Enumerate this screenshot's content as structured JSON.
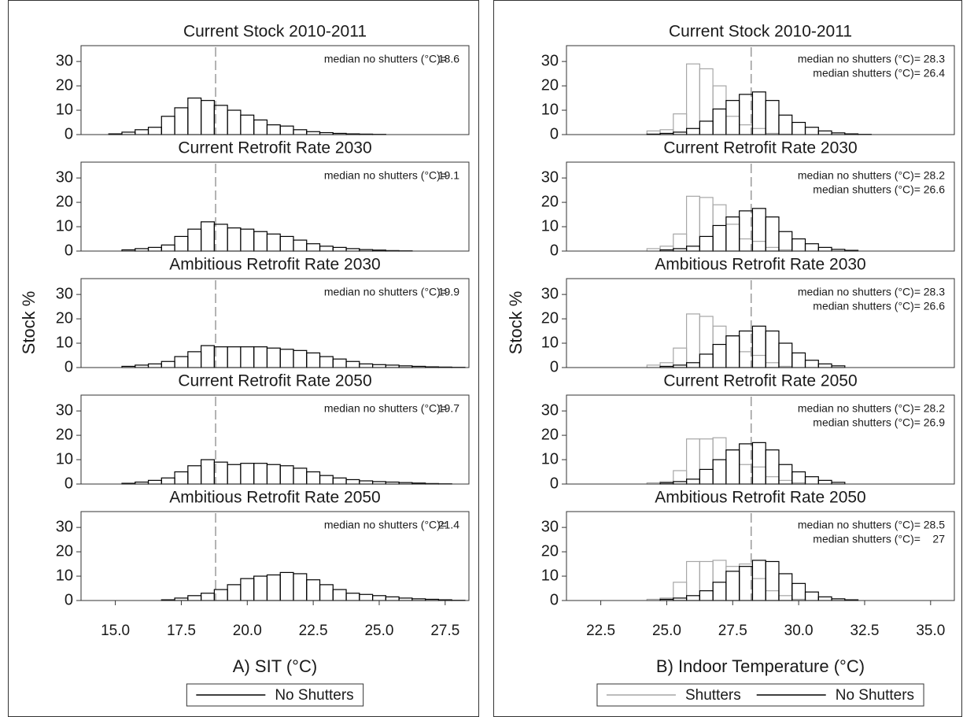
{
  "chart_data": [
    {
      "type": "histogram",
      "xlabel": "A) SIT (°C)",
      "ylabel": "Stock %",
      "xlim": [
        13.7,
        28.4
      ],
      "xticks": [
        {
          "value": 15,
          "label": "15.0"
        },
        {
          "value": 17.5,
          "label": "17.5"
        },
        {
          "value": 20,
          "label": "20.0"
        },
        {
          "value": 22.5,
          "label": "22.5"
        },
        {
          "value": 25,
          "label": "25.0"
        },
        {
          "value": 27.5,
          "label": "27.5"
        }
      ],
      "ylim": [
        0,
        36.5
      ],
      "yticks": [
        0,
        10,
        20,
        30
      ],
      "reference_line": 18.8,
      "bins": [
        14.25,
        14.75,
        15.25,
        15.75,
        16.25,
        16.75,
        17.25,
        17.75,
        18.25,
        18.75,
        19.25,
        19.75,
        20.25,
        20.75,
        21.25,
        21.75,
        22.25,
        22.75,
        23.25,
        23.75,
        24.25,
        24.75,
        25.25,
        25.75,
        26.25,
        26.75,
        27.25,
        27.75,
        28.25
      ],
      "series": [
        {
          "name": "No Shutters",
          "color": "#000000"
        }
      ],
      "panels": [
        {
          "title": "Current Stock 2010-2011",
          "annotations": [
            {
              "label": "median no shutters (°C)=",
              "value": 18.6
            }
          ],
          "values": [
            [
              0,
              0.3,
              1,
              2,
              3,
              7.5,
              11,
              15,
              14,
              12,
              10,
              8,
              6,
              4,
              3.5,
              2,
              1.2,
              0.8,
              0.5,
              0.3,
              0.2,
              0.1,
              0,
              0,
              0,
              0,
              0,
              0
            ]
          ]
        },
        {
          "title": "Current Retrofit Rate 2030",
          "annotations": [
            {
              "label": "median no shutters (°C)=",
              "value": 19.1
            }
          ],
          "values": [
            [
              0,
              0,
              0.5,
              1,
              1.5,
              2.5,
              6,
              9,
              12,
              11,
              9.5,
              9,
              8,
              7,
              6,
              4.5,
              3,
              2,
              1.5,
              1,
              0.6,
              0.4,
              0.2,
              0.1,
              0,
              0,
              0,
              0
            ]
          ]
        },
        {
          "title": "Ambitious Retrofit Rate 2030",
          "annotations": [
            {
              "label": "median no shutters (°C)=",
              "value": 19.9
            }
          ],
          "values": [
            [
              0,
              0,
              0.5,
              1,
              1.5,
              2.5,
              4.5,
              6.5,
              9,
              8.5,
              8.5,
              8.5,
              8.5,
              8,
              7.5,
              7,
              6,
              4.5,
              3.5,
              2.5,
              1.5,
              1.2,
              1,
              0.7,
              0.5,
              0.3,
              0.2,
              0.1
            ]
          ]
        },
        {
          "title": "Current Retrofit Rate 2050",
          "annotations": [
            {
              "label": "median no shutters (°C)=",
              "value": 19.7
            }
          ],
          "values": [
            [
              0,
              0,
              0.3,
              0.8,
              1.5,
              2.5,
              5,
              7.5,
              10,
              9,
              8,
              8.5,
              8.5,
              8,
              7.5,
              6.5,
              5,
              3.5,
              2.5,
              1.8,
              1.3,
              1,
              0.8,
              0.6,
              0.4,
              0.2,
              0.1,
              0
            ]
          ]
        },
        {
          "title": "Ambitious Retrofit Rate 2050",
          "annotations": [
            {
              "label": "median no shutters (°C)=",
              "value": 21.4
            }
          ],
          "values": [
            [
              0,
              0,
              0,
              0,
              0,
              0.3,
              1,
              2,
              3,
              4.5,
              6.5,
              9,
              10,
              10.5,
              11.5,
              11,
              8.5,
              6.5,
              4.5,
              3,
              2.5,
              2,
              1.5,
              1,
              0.7,
              0.5,
              0.3,
              0.1
            ]
          ]
        }
      ]
    },
    {
      "type": "histogram",
      "xlabel": "B) Indoor Temperature (°C)",
      "ylabel": "Stock %",
      "xlim": [
        21.2,
        35.9
      ],
      "xticks": [
        {
          "value": 22.5,
          "label": "22.5"
        },
        {
          "value": 25,
          "label": "25.0"
        },
        {
          "value": 27.5,
          "label": "27.5"
        },
        {
          "value": 30,
          "label": "30.0"
        },
        {
          "value": 32.5,
          "label": "32.5"
        },
        {
          "value": 35,
          "label": "35.0"
        }
      ],
      "ylim": [
        0,
        36.5
      ],
      "yticks": [
        0,
        10,
        20,
        30
      ],
      "reference_line": 28.2,
      "bins": [
        21.25,
        21.75,
        22.25,
        22.75,
        23.25,
        23.75,
        24.25,
        24.75,
        25.25,
        25.75,
        26.25,
        26.75,
        27.25,
        27.75,
        28.25,
        28.75,
        29.25,
        29.75,
        30.25,
        30.75,
        31.25,
        31.75,
        32.25,
        32.75,
        33.25,
        33.75,
        34.25,
        34.75,
        35.25,
        35.75
      ],
      "series": [
        {
          "name": "Shutters",
          "color": "#a6a6a6"
        },
        {
          "name": "No Shutters",
          "color": "#000000"
        }
      ],
      "panels": [
        {
          "title": "Current Stock 2010-2011",
          "annotations": [
            {
              "label": "median no shutters (°C)=",
              "value": 28.3
            },
            {
              "label": "median shutters (°C)=",
              "value": 26.4
            }
          ],
          "values": [
            [
              0,
              0,
              0,
              0,
              0,
              0,
              1.5,
              2,
              8.5,
              29,
              27,
              20,
              7.5,
              4,
              2.5,
              0.5,
              0.2,
              0,
              0,
              0,
              0,
              0,
              0,
              0,
              0,
              0,
              0,
              0,
              0
            ],
            [
              0,
              0,
              0,
              0,
              0,
              0,
              0.2,
              0.5,
              1,
              2.5,
              5.5,
              10.5,
              14,
              16.5,
              17.5,
              14,
              8,
              5,
              3,
              1.5,
              0.7,
              0.3,
              0.1,
              0,
              0,
              0,
              0,
              0,
              0
            ]
          ]
        },
        {
          "title": "Current Retrofit Rate 2030",
          "annotations": [
            {
              "label": "median no shutters (°C)=",
              "value": 28.2
            },
            {
              "label": "median shutters (°C)=",
              "value": 26.6
            }
          ],
          "values": [
            [
              0,
              0,
              0,
              0,
              0,
              0,
              1,
              2,
              7,
              22.5,
              22,
              19,
              11,
              5,
              4,
              1.5,
              0.5,
              0,
              0,
              0,
              0,
              0,
              0,
              0,
              0,
              0,
              0,
              0,
              0
            ],
            [
              0,
              0,
              0,
              0,
              0,
              0,
              0,
              0.5,
              1,
              2,
              6,
              10.5,
              14,
              16.5,
              17.5,
              14,
              8,
              5,
              3,
              1.5,
              0.7,
              0.3,
              0,
              0,
              0,
              0,
              0,
              0,
              0
            ]
          ]
        },
        {
          "title": "Ambitious Retrofit Rate 2030",
          "annotations": [
            {
              "label": "median no shutters (°C)=",
              "value": 28.3
            },
            {
              "label": "median shutters (°C)=",
              "value": 26.6
            }
          ],
          "values": [
            [
              0,
              0,
              0,
              0,
              0,
              0,
              1,
              2,
              8,
              22,
              21,
              17,
              13,
              6.5,
              5,
              2,
              0.5,
              0,
              0,
              0,
              0,
              0,
              0,
              0,
              0,
              0,
              0,
              0,
              0
            ],
            [
              0,
              0,
              0,
              0,
              0,
              0,
              0,
              0.5,
              1,
              2,
              5.5,
              9.5,
              13,
              15,
              17,
              15,
              10,
              6,
              3,
              1.5,
              0.7,
              0,
              0,
              0,
              0,
              0,
              0,
              0,
              0
            ]
          ]
        },
        {
          "title": "Current Retrofit Rate 2050",
          "annotations": [
            {
              "label": "median no shutters (°C)=",
              "value": 28.2
            },
            {
              "label": "median shutters (°C)=",
              "value": 26.9
            }
          ],
          "values": [
            [
              0,
              0,
              0,
              0,
              0,
              0,
              0.5,
              1,
              5.5,
              18.5,
              18.5,
              19,
              14,
              8,
              7,
              3,
              1.5,
              0.5,
              0,
              0,
              0,
              0,
              0,
              0,
              0,
              0,
              0,
              0,
              0
            ],
            [
              0,
              0,
              0,
              0,
              0,
              0,
              0,
              0.5,
              1,
              2,
              6,
              10,
              14,
              16.5,
              17,
              14,
              8,
              5,
              3,
              1.5,
              0.7,
              0,
              0,
              0,
              0,
              0,
              0,
              0,
              0
            ]
          ]
        },
        {
          "title": "Ambitious Retrofit Rate 2050",
          "annotations": [
            {
              "label": "median no shutters (°C)=",
              "value": 28.5
            },
            {
              "label": "median shutters (°C)=",
              "value": 27
            }
          ],
          "values": [
            [
              0,
              0,
              0,
              0,
              0,
              0,
              0.5,
              1,
              7.5,
              16,
              16,
              16.5,
              14,
              15,
              9,
              4,
              2,
              0.5,
              0,
              0,
              0,
              0,
              0,
              0,
              0,
              0,
              0,
              0,
              0
            ],
            [
              0,
              0,
              0,
              0,
              0,
              0,
              0,
              0.5,
              1,
              2,
              4,
              7.5,
              12,
              14,
              16.5,
              16,
              11,
              7,
              3.5,
              1.5,
              0.7,
              0.3,
              0,
              0,
              0,
              0,
              0,
              0,
              0
            ]
          ]
        }
      ]
    }
  ]
}
